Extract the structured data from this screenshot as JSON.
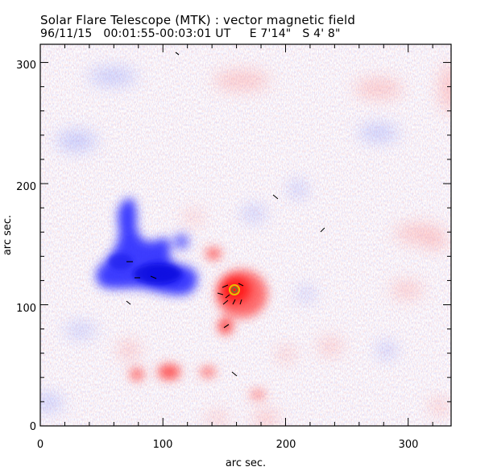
{
  "header": {
    "title": "Solar Flare Telescope (MTK) : vector magnetic field",
    "subtitle": "96/11/15   00:01:55-00:03:01 UT     E 7'14\"   S 4' 8\""
  },
  "axes": {
    "xlabel": "arc sec.",
    "ylabel": "arc sec.",
    "x_ticks": [
      "0",
      "100",
      "200",
      "300"
    ],
    "y_ticks": [
      "0",
      "100",
      "200",
      "300"
    ],
    "x_range": [
      0,
      335
    ],
    "y_range": [
      0,
      315
    ]
  },
  "colors": {
    "positive_polarity": "#ff2020",
    "negative_polarity": "#2a2aff",
    "sunspot_ring": "#e8c000",
    "frame": "#000000"
  }
}
